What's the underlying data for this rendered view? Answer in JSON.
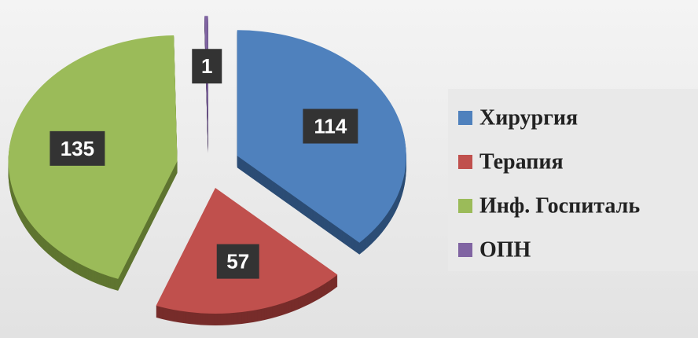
{
  "chart_data": {
    "type": "pie",
    "categories": [
      "Хирургия",
      "Терапия",
      "Инф. Госпиталь",
      "ОПН"
    ],
    "values": [
      114,
      57,
      135,
      1
    ],
    "colors": [
      "#4f81bd",
      "#c0504d",
      "#9bbb59",
      "#8064a2"
    ],
    "side_colors": [
      "#2c4d75",
      "#772c2a",
      "#5f7530",
      "#4d3b62"
    ],
    "legend": "right"
  }
}
